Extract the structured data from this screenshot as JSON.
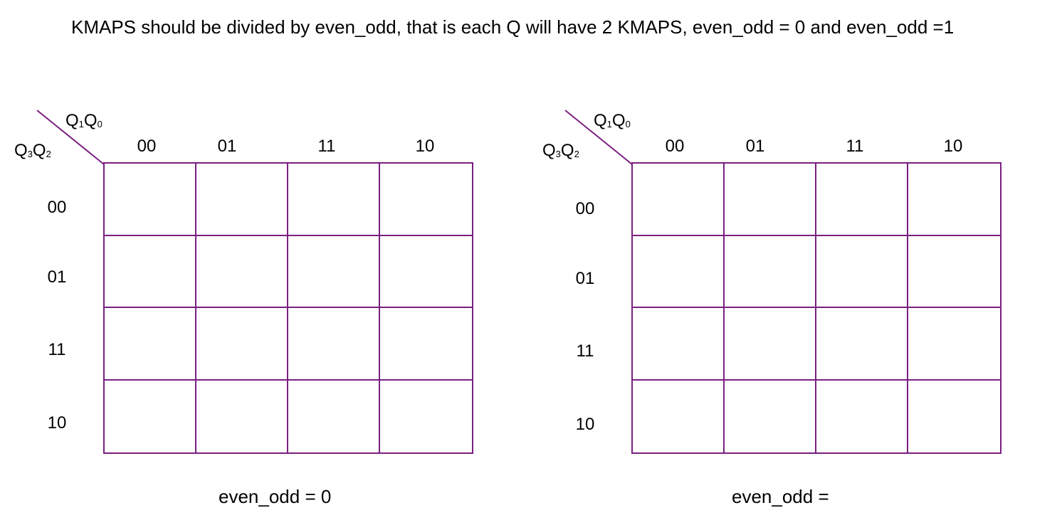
{
  "heading": "KMAPS should be divided by even_odd, that is each Q will have 2 KMAPS, even_odd = 0 and even_odd =1",
  "accent_color": "#7a1f80",
  "kmaps": [
    {
      "row_variable_main": "Q",
      "row_variable_sub1": "3",
      "row_variable_main2": "Q",
      "row_variable_sub2": "2",
      "col_variable_main": "Q",
      "col_variable_sub1": "1",
      "col_variable_main2": "Q",
      "col_variable_sub2": "0",
      "column_labels": [
        "00",
        "01",
        "11",
        "10"
      ],
      "row_labels": [
        "00",
        "01",
        "11",
        "10"
      ],
      "cells": [
        [
          "",
          "",
          "",
          ""
        ],
        [
          "",
          "",
          "",
          ""
        ],
        [
          "",
          "",
          "",
          ""
        ],
        [
          "",
          "",
          "",
          ""
        ]
      ],
      "caption": "even_odd = 0"
    },
    {
      "row_variable_main": "Q",
      "row_variable_sub1": "3",
      "row_variable_main2": "Q",
      "row_variable_sub2": "2",
      "col_variable_main": "Q",
      "col_variable_sub1": "1",
      "col_variable_main2": "Q",
      "col_variable_sub2": "0",
      "column_labels": [
        "00",
        "01",
        "11",
        "10"
      ],
      "row_labels": [
        "00",
        "01",
        "11",
        "10"
      ],
      "cells": [
        [
          "",
          "",
          "",
          ""
        ],
        [
          "",
          "",
          "",
          ""
        ],
        [
          "",
          "",
          "",
          ""
        ],
        [
          "",
          "",
          "",
          ""
        ]
      ],
      "caption": "even_odd ="
    }
  ]
}
